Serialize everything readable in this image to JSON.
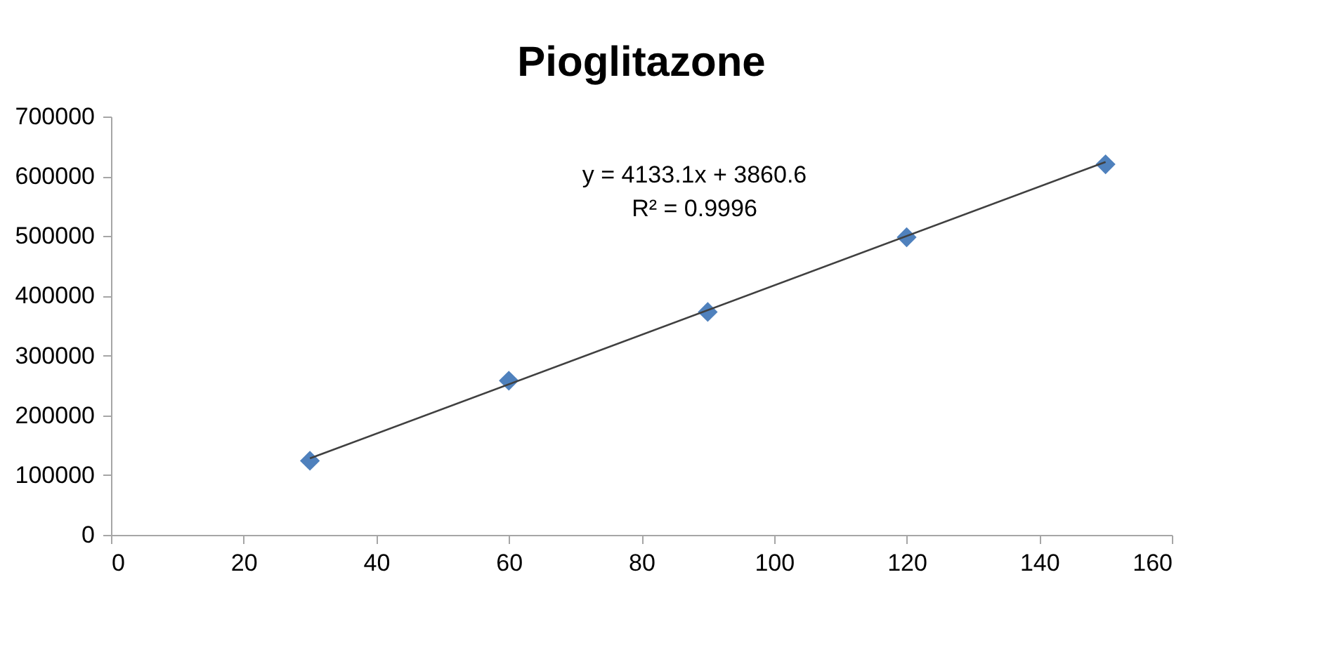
{
  "chart_data": {
    "type": "scatter",
    "title": "Pioglitazone",
    "x": [
      30,
      60,
      90,
      120,
      150
    ],
    "series": [
      {
        "color": "#4f81bd",
        "marker": "diamond",
        "values": [
          124000,
          258000,
          373000,
          498000,
          620000
        ]
      },
      {
        "type": "line",
        "color": "#404040",
        "x": [
          30,
          150
        ],
        "values": [
          128000,
          624000
        ],
        "line_style": "solid",
        "marker": "none"
      }
    ],
    "xlim": [
      0,
      160
    ],
    "xticks": [
      0,
      20,
      40,
      60,
      80,
      100,
      120,
      140,
      160
    ],
    "ylim": [
      0,
      700000
    ],
    "yticks": [
      0,
      100000,
      200000,
      300000,
      400000,
      500000,
      600000,
      700000
    ],
    "annotations": [
      "y = 4133.1x + 3860.6",
      "R² = 0.9996"
    ],
    "grid": false
  }
}
